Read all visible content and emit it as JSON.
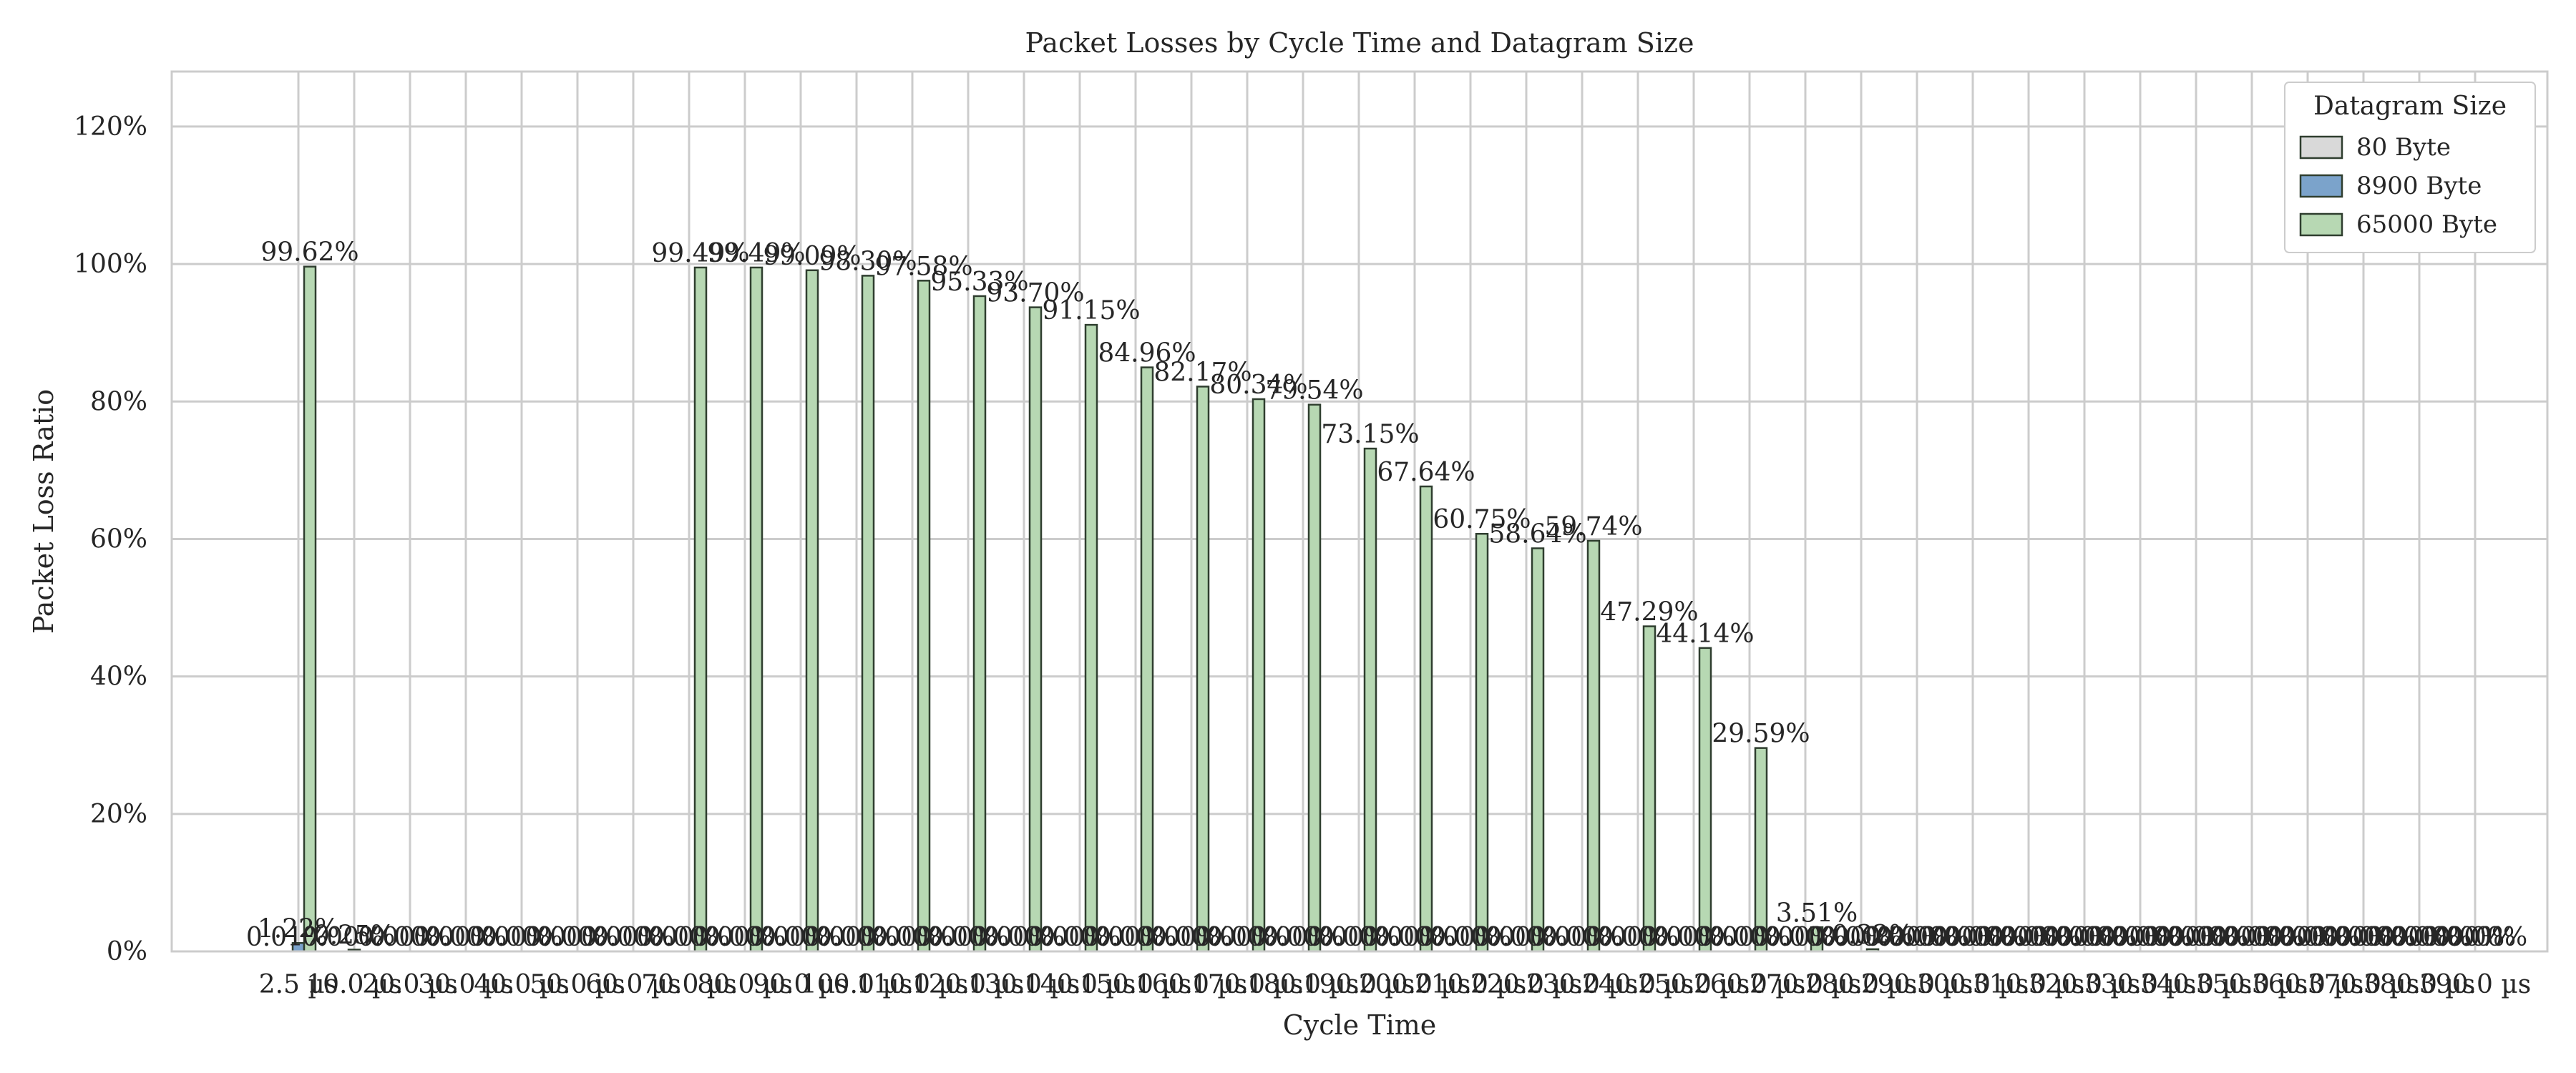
{
  "chart_data": {
    "type": "bar",
    "title": "Packet Losses by Cycle Time and Datagram Size",
    "xlabel": "Cycle Time",
    "ylabel": "Packet Loss Ratio",
    "ylim": [
      0,
      1.28
    ],
    "yticks": [
      0,
      0.2,
      0.4,
      0.6,
      0.8,
      1.0,
      1.2
    ],
    "ytick_labels": [
      "0%",
      "20%",
      "40%",
      "60%",
      "80%",
      "100%",
      "120%"
    ],
    "grid": true,
    "legend": {
      "title": "Datagram Size",
      "placement": "top-right"
    },
    "categories": [
      "2.5 µs",
      "10.0 µs",
      "20.0 µs",
      "30.0 µs",
      "40.0 µs",
      "50.0 µs",
      "60.0 µs",
      "70.0 µs",
      "80.0 µs",
      "90.0 µs",
      "100.0 µs",
      "110.0 µs",
      "120.0 µs",
      "130.0 µs",
      "140.0 µs",
      "150.0 µs",
      "160.0 µs",
      "170.0 µs",
      "180.0 µs",
      "190.0 µs",
      "200.0 µs",
      "210.0 µs",
      "220.0 µs",
      "230.0 µs",
      "240.0 µs",
      "250.0 µs",
      "260.0 µs",
      "270.0 µs",
      "280.0 µs",
      "290.0 µs",
      "300.0 µs",
      "310.0 µs",
      "320.0 µs",
      "330.0 µs",
      "340.0 µs",
      "350.0 µs",
      "360.0 µs",
      "370.0 µs",
      "380.0 µs",
      "390.0 µs"
    ],
    "series": [
      {
        "name": "80 Byte",
        "color": "#d9d9d9",
        "values": [
          0.0001,
          0,
          0,
          0,
          0,
          0,
          0,
          0,
          0,
          0,
          0,
          0,
          0,
          0,
          0,
          0,
          0,
          0,
          0,
          0,
          0,
          0,
          0,
          0,
          0,
          0,
          0,
          0,
          0,
          0,
          0,
          0,
          0,
          0,
          0,
          0,
          0,
          0,
          0,
          0
        ],
        "labels": [
          "0.01%",
          "0.00%",
          "0.00%",
          "0.00%",
          "0.00%",
          "0.00%",
          "0.00%",
          "0.00%",
          "0.00%",
          "0.00%",
          "0.00%",
          "0.00%",
          "0.00%",
          "0.00%",
          "0.00%",
          "0.00%",
          "0.00%",
          "0.00%",
          "0.00%",
          "0.00%",
          "0.00%",
          "0.00%",
          "0.00%",
          "0.00%",
          "0.00%",
          "0.00%",
          "0.00%",
          "0.00%",
          "0.00%",
          "0.00%",
          "0.00%",
          "0.00%",
          "0.00%",
          "0.00%",
          "0.00%",
          "0.00%",
          "0.00%",
          "0.00%",
          "0.00%",
          "0.00%"
        ]
      },
      {
        "name": "8900 Byte",
        "color": "#7ba3cb",
        "values": [
          0.0122,
          0.0025,
          0,
          0,
          0,
          0,
          0,
          0,
          0,
          0,
          0,
          0,
          0,
          0,
          0,
          0,
          0,
          0,
          0,
          0,
          0,
          0,
          0,
          0,
          0,
          0,
          0,
          0,
          0,
          0,
          0,
          0,
          0,
          0,
          0,
          0,
          0,
          0,
          0,
          0
        ],
        "labels": [
          "1.22%",
          "0.25%",
          "0.00%",
          "0.00%",
          "0.00%",
          "0.00%",
          "0.00%",
          "0.00%",
          "0.00%",
          "0.00%",
          "0.00%",
          "0.00%",
          "0.00%",
          "0.00%",
          "0.00%",
          "0.00%",
          "0.00%",
          "0.00%",
          "0.00%",
          "0.00%",
          "0.00%",
          "0.00%",
          "0.00%",
          "0.00%",
          "0.00%",
          "0.00%",
          "0.00%",
          "0.00%",
          "0.00%",
          "0.00%",
          "0.00%",
          "0.00%",
          "0.00%",
          "0.00%",
          "0.00%",
          "0.00%",
          "0.00%",
          "0.00%",
          "0.00%",
          "0.00%"
        ]
      },
      {
        "name": "65000 Byte",
        "color": "#b7d8b3",
        "values": [
          0.9962,
          0,
          0,
          0,
          0,
          0,
          0,
          0.9949,
          0.9949,
          0.9909,
          0.983,
          0.9758,
          0.9533,
          0.937,
          0.9115,
          0.8496,
          0.8217,
          0.8034,
          0.7954,
          0.7315,
          0.6764,
          0.6075,
          0.5864,
          0.5974,
          0.4729,
          0.4414,
          0.2959,
          0.0351,
          0.0032,
          0,
          0,
          0,
          0,
          0,
          0,
          0,
          0,
          0,
          0,
          0
        ],
        "labels": [
          "99.62%",
          "",
          "",
          "",
          "",
          "",
          "",
          "99.49%",
          "99.49%",
          "99.09%",
          "98.30%",
          "97.58%",
          "95.33%",
          "93.70%",
          "91.15%",
          "84.96%",
          "82.17%",
          "80.34%",
          "79.54%",
          "73.15%",
          "67.64%",
          "60.75%",
          "58.64%",
          "59.74%",
          "47.29%",
          "44.14%",
          "29.59%",
          "3.51%",
          "0.32%",
          "0.00%",
          "0.00%",
          "0.00%",
          "0.00%",
          "0.00%",
          "0.00%",
          "0.00%",
          "0.00%",
          "0.00%",
          "0.00%",
          "0.00%"
        ]
      }
    ]
  }
}
